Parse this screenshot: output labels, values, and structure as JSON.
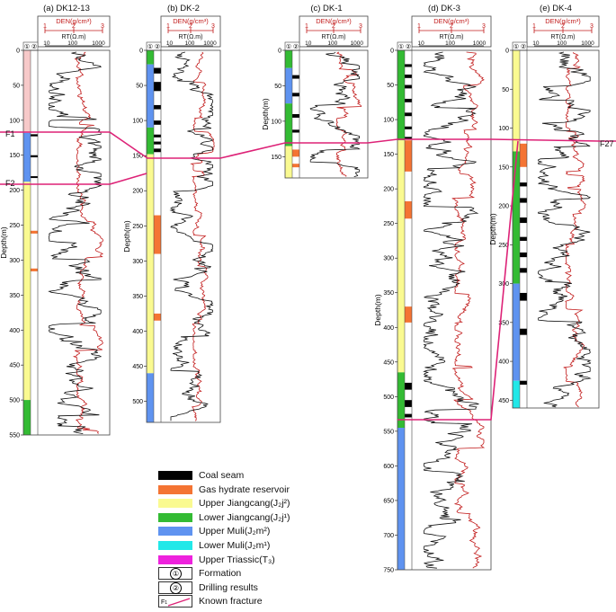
{
  "colors": {
    "coal": "#000000",
    "hydrate": "#f47433",
    "upper_jiangcang": "#fafa91",
    "lower_jiangcang": "#33bb33",
    "upper_muli": "#5f93f0",
    "lower_muli": "#22e8e8",
    "upper_triassic": "#ee22dd",
    "den_curve": "#c21b1b",
    "rt_curve": "#111111",
    "fracture": "#dd2277",
    "pink_zone": "#f7c9c9"
  },
  "panels": [
    {
      "id": "a",
      "title": "(a) DK12-13",
      "ticks": [
        "0",
        "50",
        "100",
        "150",
        "200",
        "250",
        "300",
        "350",
        "400",
        "450",
        "500",
        "550"
      ],
      "depth_label": "Depth(m)",
      "max_depth": 550
    },
    {
      "id": "b",
      "title": "(b) DK-2",
      "ticks": [
        "0",
        "50",
        "100",
        "150",
        "200",
        "250",
        "300",
        "350",
        "400",
        "450",
        "500"
      ],
      "depth_label": "Depth(m)",
      "max_depth": 530
    },
    {
      "id": "c",
      "title": "(c) DK-1",
      "ticks": [
        "0",
        "50",
        "100",
        "150"
      ],
      "depth_label": "Depth(m)",
      "max_depth": 180
    },
    {
      "id": "d",
      "title": "(d) DK-3",
      "ticks": [
        "0",
        "50",
        "100",
        "150",
        "200",
        "250",
        "300",
        "350",
        "400",
        "450",
        "500",
        "550",
        "600",
        "650",
        "700",
        "750"
      ],
      "depth_label": "Depth(m)",
      "max_depth": 750
    },
    {
      "id": "e",
      "title": "(e) DK-4",
      "ticks": [
        "0",
        "50",
        "100",
        "150",
        "200",
        "250",
        "300",
        "350",
        "400",
        "450"
      ],
      "depth_label": "Depth(m)",
      "max_depth": 460
    }
  ],
  "track_headers": {
    "col1": "①",
    "col2": "②"
  },
  "den_header": {
    "label": "DEN(g/cm³)",
    "ticks": [
      "1",
      "2",
      "3"
    ]
  },
  "rt_header": {
    "label": "RT(Ω.m)",
    "ticks": [
      "10",
      "100",
      "1000"
    ]
  },
  "fractures": {
    "F1": "F1",
    "F2": "F2",
    "F27": "F27"
  },
  "legend": [
    {
      "key": "coal",
      "label": "Coal seam",
      "icon": "swatch"
    },
    {
      "key": "hydrate",
      "label": "Gas hydrate reservoir",
      "icon": "swatch"
    },
    {
      "key": "upper_jiangcang",
      "label": "Upper Jiangcang(J₂j²)",
      "icon": "swatch"
    },
    {
      "key": "lower_jiangcang",
      "label": "Lower Jiangcang(J₂j¹)",
      "icon": "swatch"
    },
    {
      "key": "upper_muli",
      "label": "Upper Muli(J₂m²)",
      "icon": "swatch"
    },
    {
      "key": "lower_muli",
      "label": "Lower Muli(J₂m¹)",
      "icon": "swatch"
    },
    {
      "key": "upper_triassic",
      "label": "Upper Triassic(T₃)",
      "icon": "swatch"
    },
    {
      "key": "formation",
      "label": "Formation",
      "icon": "①"
    },
    {
      "key": "drilling",
      "label": "Drilling results",
      "icon": "②"
    },
    {
      "key": "fracture",
      "label": "Known fracture",
      "icon": "F₁"
    }
  ]
}
